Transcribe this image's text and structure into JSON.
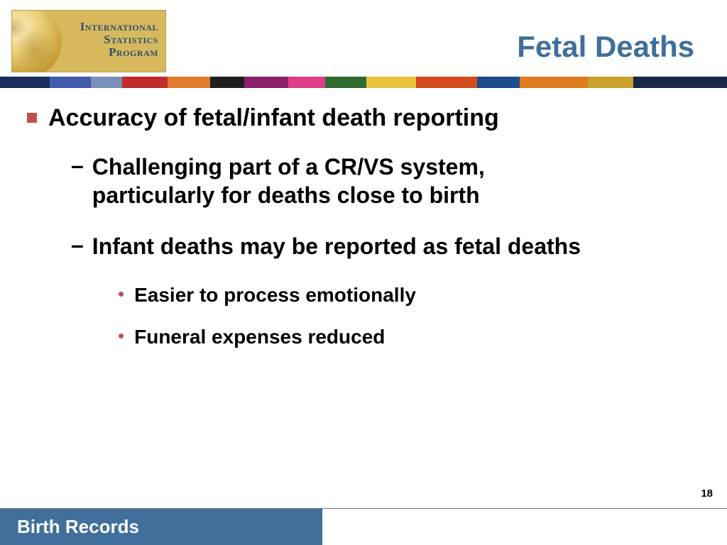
{
  "logo": {
    "line1": "International",
    "line2": "Statistics",
    "line3": "Program"
  },
  "title": "Fetal Deaths",
  "stripe_segments": [
    {
      "color": "#1a2d5c",
      "width": 70
    },
    {
      "color": "#3f5aa8",
      "width": 58
    },
    {
      "color": "#7a8fb8",
      "width": 44
    },
    {
      "color": "#c02b2b",
      "width": 64
    },
    {
      "color": "#e27a2c",
      "width": 60
    },
    {
      "color": "#1e1e1e",
      "width": 48
    },
    {
      "color": "#8a1f6a",
      "width": 62
    },
    {
      "color": "#e03a8a",
      "width": 52
    },
    {
      "color": "#2f6b2f",
      "width": 58
    },
    {
      "color": "#e8c23a",
      "width": 70
    },
    {
      "color": "#d24a1e",
      "width": 86
    },
    {
      "color": "#1b4b8a",
      "width": 60
    },
    {
      "color": "#e07a1e",
      "width": 96
    },
    {
      "color": "#c9a02a",
      "width": 64
    },
    {
      "color": "#182848",
      "width": 132
    }
  ],
  "bullets": {
    "level1": {
      "marker_color": "#c0504d",
      "text": "Accuracy of fetal/infant death reporting",
      "font_size": 34
    },
    "level2": [
      {
        "marker": "–",
        "text": "Challenging part of a CR/VS system, particularly for deaths close to birth",
        "font_size": 32
      },
      {
        "marker": "–",
        "text": "Infant deaths may be reported as fetal deaths",
        "font_size": 32
      }
    ],
    "level3": [
      {
        "marker": "•",
        "marker_color": "#c0504d",
        "text": "Easier to process emotionally",
        "font_size": 28
      },
      {
        "marker": "•",
        "marker_color": "#c0504d",
        "text": "Funeral expenses reduced",
        "font_size": 28
      }
    ]
  },
  "page_number": "18",
  "footer": {
    "left_text": "Birth Records",
    "left_bg": "#3f6f9a",
    "left_color": "#ffffff",
    "right_bg": "#ffffff"
  },
  "colors": {
    "title": "#3f6f9a",
    "body_text": "#000000",
    "accent_marker": "#c0504d",
    "background": "#ffffff",
    "logo_bg": "#d7b95d",
    "logo_border": "#b89d56",
    "logo_text": "#2e4e73"
  }
}
